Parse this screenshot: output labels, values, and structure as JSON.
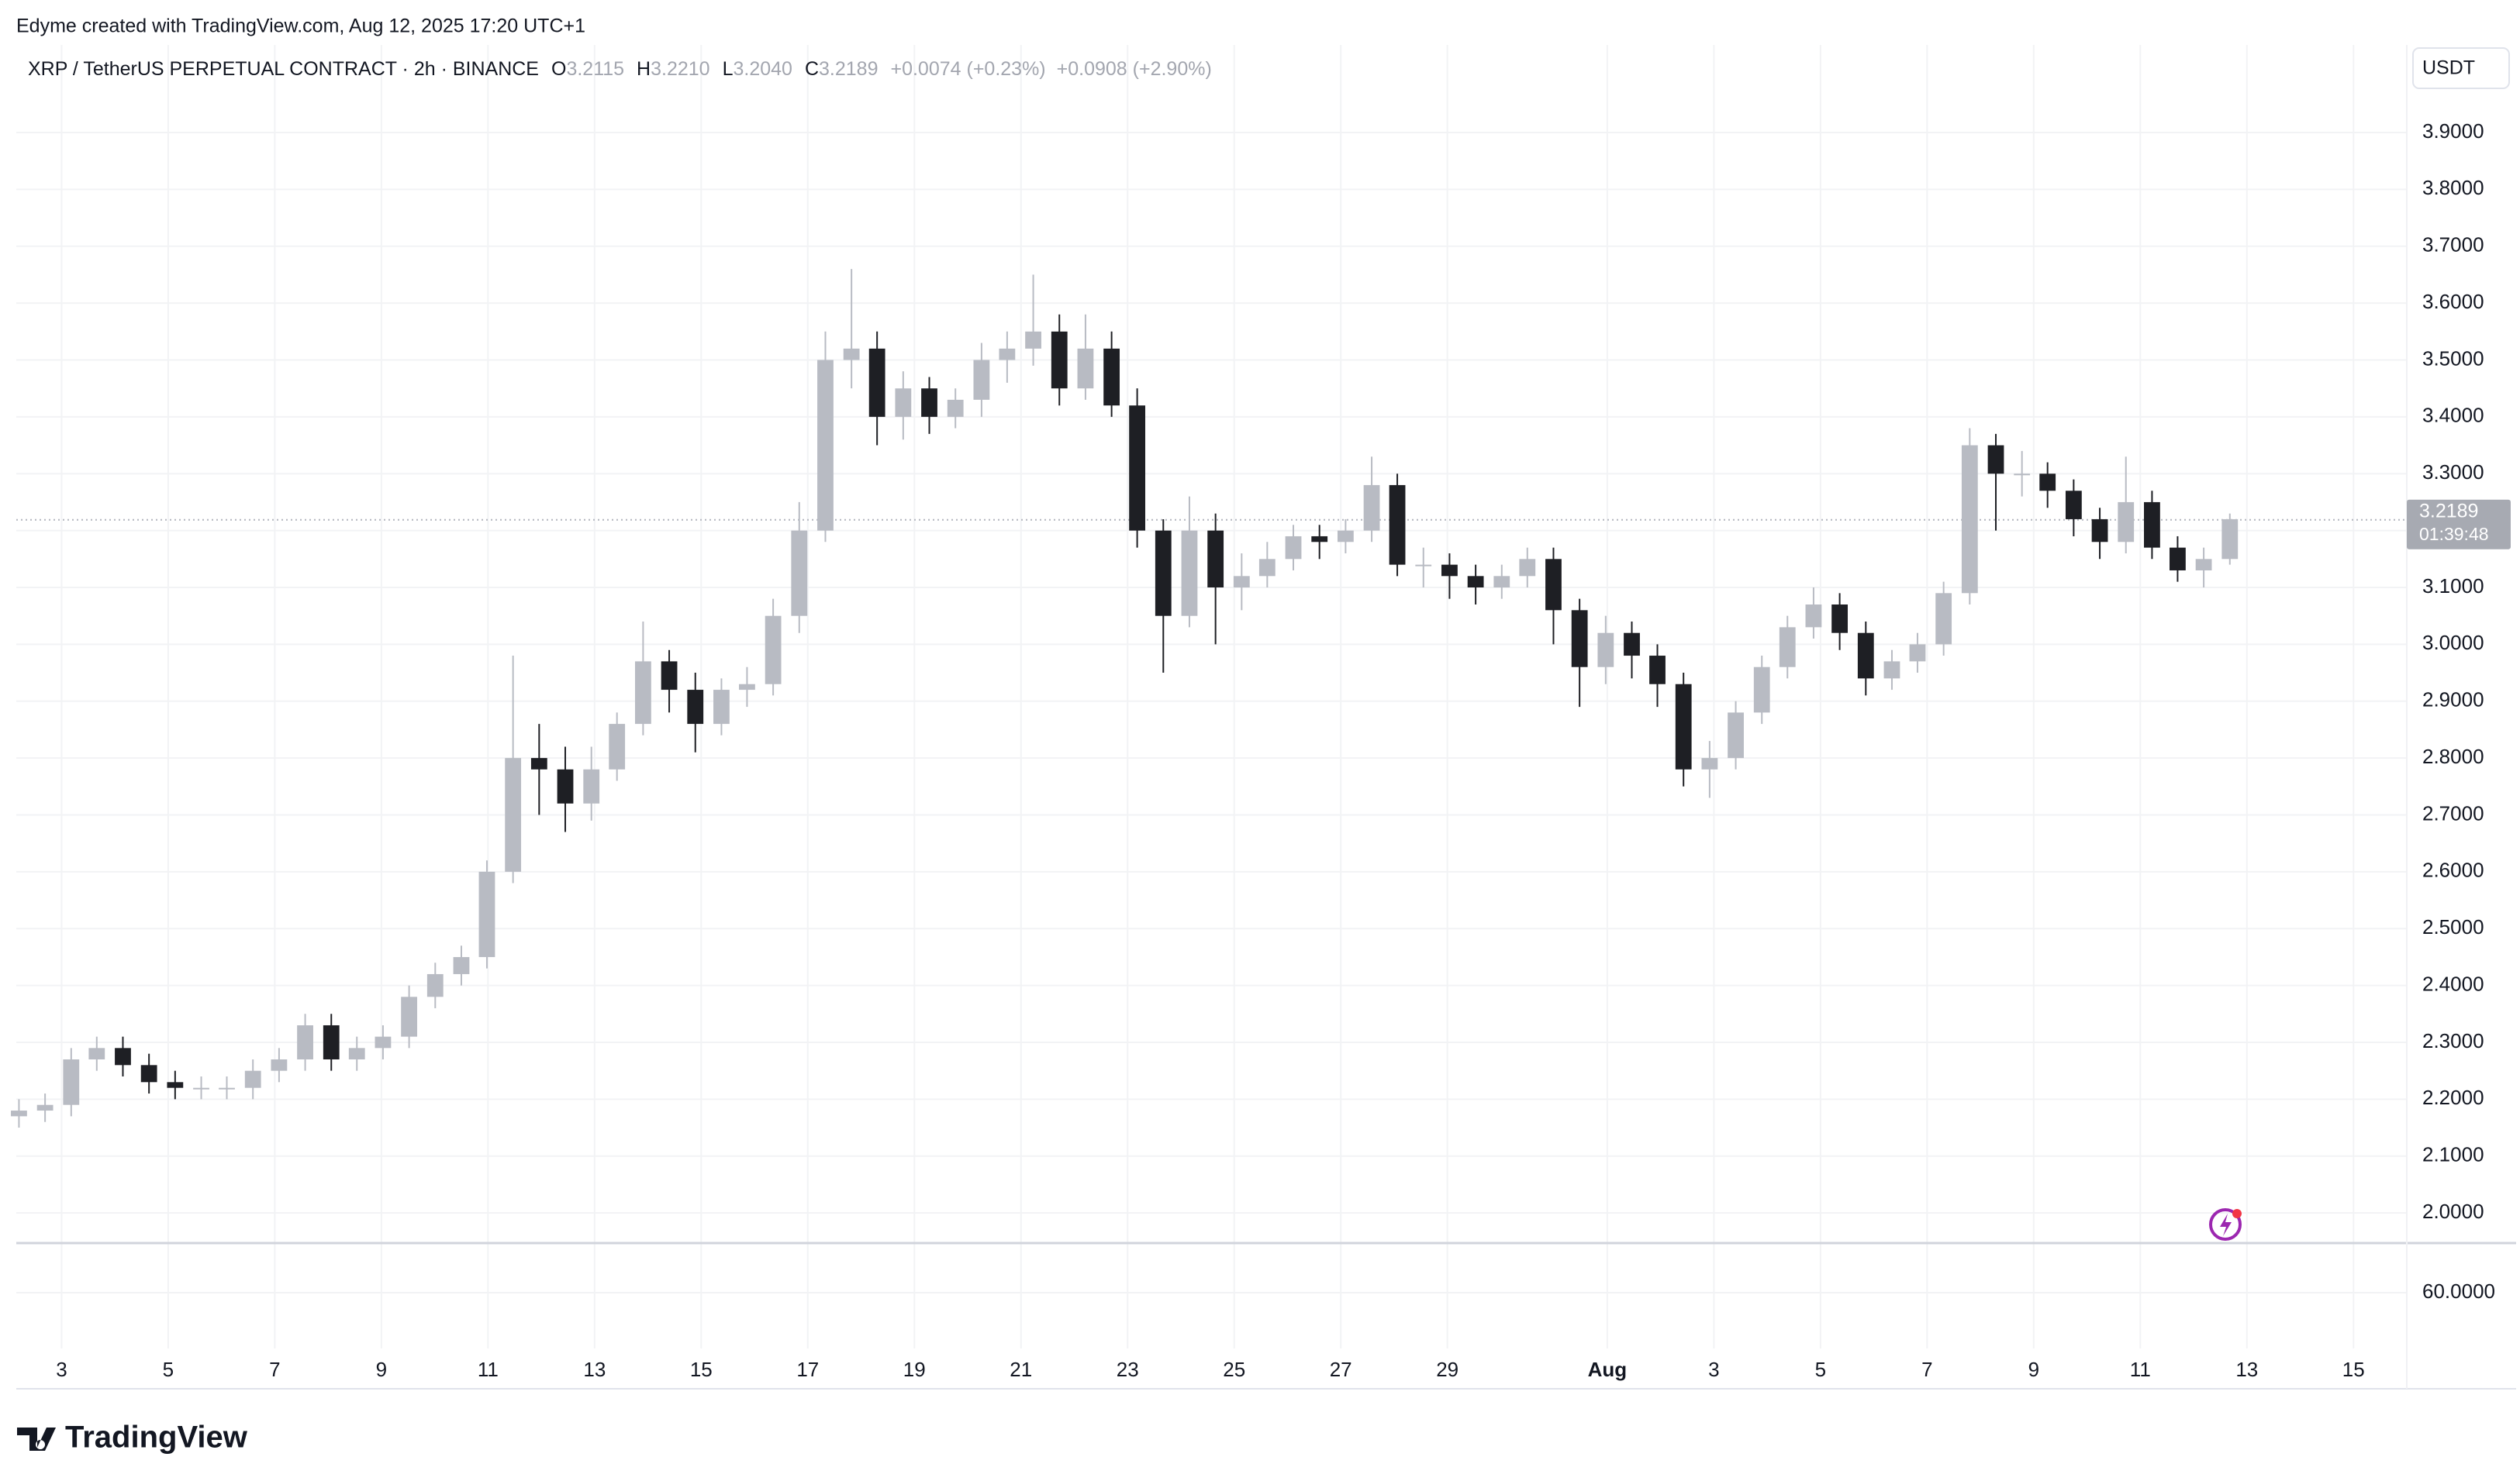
{
  "chart_data": {
    "type": "candlestick",
    "attribution": "Edyme created with TradingView.com, Aug 12, 2025 17:20 UTC+1",
    "symbol": "XRP / TetherUS PERPETUAL CONTRACT · 2h · BINANCE",
    "ohlc_legend": [
      {
        "key": "O",
        "value": "3.2115"
      },
      {
        "key": "H",
        "value": "3.2210"
      },
      {
        "key": "L",
        "value": "3.2040"
      },
      {
        "key": "C",
        "value": "3.2189"
      }
    ],
    "change": "+0.0074 (+0.23%)",
    "change_period": "+0.0908 (+2.90%)",
    "currency": "USDT",
    "last_price": 3.2189,
    "countdown": "01:39:48",
    "brand": "TradingView",
    "up_color": "#b8bbc3",
    "down_color": "#1e1f24",
    "xlim": [
      2.15,
      47.0
    ],
    "xticks": [
      3,
      5,
      7,
      9,
      11,
      13,
      15,
      17,
      19,
      21,
      23,
      25,
      27,
      29,
      {
        "value": 32,
        "label": "Aug"
      },
      {
        "value": 34,
        "label": "3"
      },
      {
        "value": 36,
        "label": "5"
      },
      {
        "value": 38,
        "label": "7"
      },
      {
        "value": 40,
        "label": "9"
      },
      {
        "value": 42,
        "label": "11"
      },
      {
        "value": 44,
        "label": "13"
      },
      {
        "value": 46,
        "label": "15"
      }
    ],
    "ylim": [
      1.947,
      4.054
    ],
    "yticks": [
      {
        "value": 2.0,
        "label": "2.0000"
      },
      {
        "value": 2.1,
        "label": "2.1000"
      },
      {
        "value": 2.2,
        "label": "2.2000"
      },
      {
        "value": 2.3,
        "label": "2.3000"
      },
      {
        "value": 2.4,
        "label": "2.4000"
      },
      {
        "value": 2.5,
        "label": "2.5000"
      },
      {
        "value": 2.6,
        "label": "2.6000"
      },
      {
        "value": 2.7,
        "label": "2.7000"
      },
      {
        "value": 2.8,
        "label": "2.8000"
      },
      {
        "value": 2.9,
        "label": "2.9000"
      },
      {
        "value": 3.0,
        "label": "3.0000"
      },
      {
        "value": 3.1,
        "label": "3.1000"
      },
      {
        "value": 3.2,
        "label": "3.2000"
      },
      {
        "value": 3.3,
        "label": "3.3000"
      },
      {
        "value": 3.4,
        "label": "3.4000"
      },
      {
        "value": 3.5,
        "label": "3.5000"
      },
      {
        "value": 3.6,
        "label": "3.6000"
      },
      {
        "value": 3.7,
        "label": "3.7000"
      },
      {
        "value": 3.8,
        "label": "3.8000"
      },
      {
        "value": 3.9,
        "label": "3.9000"
      }
    ],
    "pane2_yticks": [
      {
        "value": 60,
        "label": "60.0000"
      }
    ],
    "grid": true,
    "x": [
      2.2,
      2.69,
      3.18,
      3.66,
      4.15,
      4.64,
      5.13,
      5.62,
      6.1,
      6.59,
      7.08,
      7.57,
      8.06,
      8.54,
      9.03,
      9.52,
      10.01,
      10.5,
      10.98,
      11.47,
      11.96,
      12.45,
      12.94,
      13.42,
      13.91,
      14.4,
      14.89,
      15.38,
      15.86,
      16.35,
      16.84,
      17.33,
      17.82,
      18.3,
      18.79,
      19.28,
      19.77,
      20.26,
      20.74,
      21.23,
      21.72,
      22.21,
      22.7,
      23.18,
      23.67,
      24.16,
      24.65,
      25.14,
      25.62,
      26.11,
      26.6,
      27.09,
      27.58,
      28.06,
      28.55,
      29.04,
      29.53,
      30.02,
      30.5,
      30.99,
      31.48,
      31.97,
      32.46,
      32.94,
      33.43,
      33.92,
      34.41,
      34.9,
      35.38,
      35.87,
      36.36,
      36.85,
      37.34,
      37.82,
      38.31,
      38.8,
      39.29,
      39.78,
      40.26,
      40.75,
      41.24,
      41.73,
      42.22,
      42.7,
      43.19,
      43.68
    ],
    "open": [
      2.17,
      2.18,
      2.19,
      2.27,
      2.29,
      2.26,
      2.23,
      2.22,
      2.22,
      2.22,
      2.25,
      2.27,
      2.33,
      2.27,
      2.29,
      2.31,
      2.38,
      2.42,
      2.45,
      2.6,
      2.8,
      2.78,
      2.72,
      2.78,
      2.86,
      2.97,
      2.92,
      2.86,
      2.92,
      2.93,
      3.05,
      3.2,
      3.5,
      3.52,
      3.4,
      3.45,
      3.4,
      3.43,
      3.5,
      3.52,
      3.55,
      3.45,
      3.52,
      3.42,
      3.2,
      3.05,
      3.2,
      3.1,
      3.12,
      3.15,
      3.19,
      3.18,
      3.2,
      3.28,
      3.14,
      3.14,
      3.12,
      3.1,
      3.12,
      3.15,
      3.06,
      2.96,
      3.02,
      2.98,
      2.93,
      2.78,
      2.8,
      2.88,
      2.96,
      3.03,
      3.07,
      3.02,
      2.94,
      2.97,
      3.0,
      3.09,
      3.35,
      3.3,
      3.3,
      3.27,
      3.22,
      3.18,
      3.25,
      3.17,
      3.13,
      3.15
    ],
    "high": [
      2.2,
      2.21,
      2.29,
      2.31,
      2.31,
      2.28,
      2.25,
      2.24,
      2.24,
      2.27,
      2.29,
      2.35,
      2.35,
      2.31,
      2.33,
      2.4,
      2.44,
      2.47,
      2.62,
      2.98,
      2.86,
      2.82,
      2.82,
      2.88,
      3.04,
      2.99,
      2.95,
      2.94,
      2.96,
      3.08,
      3.25,
      3.55,
      3.66,
      3.55,
      3.48,
      3.47,
      3.45,
      3.53,
      3.55,
      3.65,
      3.58,
      3.58,
      3.55,
      3.45,
      3.22,
      3.26,
      3.23,
      3.16,
      3.18,
      3.21,
      3.21,
      3.22,
      3.33,
      3.3,
      3.17,
      3.16,
      3.14,
      3.14,
      3.17,
      3.17,
      3.08,
      3.05,
      3.04,
      3.0,
      2.95,
      2.83,
      2.9,
      2.98,
      3.05,
      3.1,
      3.09,
      3.04,
      2.99,
      3.02,
      3.11,
      3.38,
      3.37,
      3.34,
      3.32,
      3.29,
      3.24,
      3.33,
      3.27,
      3.19,
      3.17,
      3.23
    ],
    "low": [
      2.15,
      2.16,
      2.17,
      2.25,
      2.24,
      2.21,
      2.2,
      2.2,
      2.2,
      2.2,
      2.23,
      2.25,
      2.25,
      2.25,
      2.27,
      2.29,
      2.36,
      2.4,
      2.43,
      2.58,
      2.7,
      2.67,
      2.69,
      2.76,
      2.84,
      2.88,
      2.81,
      2.84,
      2.89,
      2.91,
      3.02,
      3.18,
      3.45,
      3.35,
      3.36,
      3.37,
      3.38,
      3.4,
      3.46,
      3.49,
      3.42,
      3.43,
      3.4,
      3.17,
      2.95,
      3.03,
      3.0,
      3.06,
      3.1,
      3.13,
      3.15,
      3.16,
      3.18,
      3.12,
      3.1,
      3.08,
      3.07,
      3.08,
      3.1,
      3.0,
      2.89,
      2.93,
      2.94,
      2.89,
      2.75,
      2.73,
      2.78,
      2.86,
      2.94,
      3.01,
      2.99,
      2.91,
      2.92,
      2.95,
      2.98,
      3.07,
      3.2,
      3.26,
      3.24,
      3.19,
      3.15,
      3.16,
      3.15,
      3.11,
      3.1,
      3.14
    ],
    "close": [
      2.18,
      2.19,
      2.27,
      2.29,
      2.26,
      2.23,
      2.22,
      2.22,
      2.22,
      2.25,
      2.27,
      2.33,
      2.27,
      2.29,
      2.31,
      2.38,
      2.42,
      2.45,
      2.6,
      2.8,
      2.78,
      2.72,
      2.78,
      2.86,
      2.97,
      2.92,
      2.86,
      2.92,
      2.93,
      3.05,
      3.2,
      3.5,
      3.52,
      3.4,
      3.45,
      3.4,
      3.43,
      3.5,
      3.52,
      3.55,
      3.45,
      3.52,
      3.42,
      3.2,
      3.05,
      3.2,
      3.1,
      3.12,
      3.15,
      3.19,
      3.18,
      3.2,
      3.28,
      3.14,
      3.14,
      3.12,
      3.1,
      3.12,
      3.15,
      3.06,
      2.96,
      3.02,
      2.98,
      2.93,
      2.78,
      2.8,
      2.88,
      2.96,
      3.03,
      3.07,
      3.02,
      2.94,
      2.97,
      3.0,
      3.09,
      3.35,
      3.3,
      3.3,
      3.27,
      3.22,
      3.18,
      3.25,
      3.17,
      3.13,
      3.15,
      3.22
    ]
  }
}
